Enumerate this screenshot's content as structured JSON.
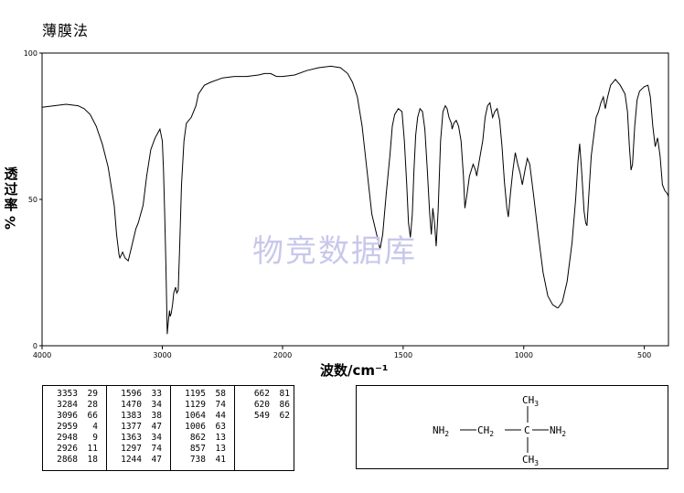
{
  "header": {
    "title": "薄膜法"
  },
  "chart_data": {
    "type": "line",
    "title": "",
    "xlabel": "波数/cm⁻¹",
    "ylabel_chars": [
      "透",
      "过",
      "率"
    ],
    "ylabel_unit": "%",
    "xlim": [
      4000,
      400
    ],
    "ylim": [
      0,
      100
    ],
    "x_ticks": [
      "4000",
      "3000",
      "2000",
      "1500",
      "1000",
      "500"
    ],
    "y_ticks": [
      "0",
      "50",
      "100"
    ],
    "series": [
      {
        "color": "#000000",
        "points": [
          [
            4000,
            81.5
          ],
          [
            3900,
            82
          ],
          [
            3800,
            82.5
          ],
          [
            3700,
            82
          ],
          [
            3650,
            81
          ],
          [
            3600,
            79
          ],
          [
            3550,
            75
          ],
          [
            3500,
            69
          ],
          [
            3450,
            61
          ],
          [
            3400,
            48
          ],
          [
            3380,
            38
          ],
          [
            3360,
            31
          ],
          [
            3353,
            30
          ],
          [
            3330,
            32
          ],
          [
            3310,
            30
          ],
          [
            3284,
            29
          ],
          [
            3260,
            33
          ],
          [
            3220,
            40
          ],
          [
            3200,
            42
          ],
          [
            3160,
            48
          ],
          [
            3130,
            58
          ],
          [
            3100,
            66
          ],
          [
            3096,
            67
          ],
          [
            3060,
            71
          ],
          [
            3020,
            74
          ],
          [
            3000,
            70
          ],
          [
            2990,
            60
          ],
          [
            2980,
            45
          ],
          [
            2970,
            28
          ],
          [
            2959,
            4
          ],
          [
            2955,
            6
          ],
          [
            2948,
            9
          ],
          [
            2940,
            12
          ],
          [
            2935,
            10
          ],
          [
            2926,
            11
          ],
          [
            2915,
            14
          ],
          [
            2905,
            18
          ],
          [
            2890,
            20
          ],
          [
            2880,
            18
          ],
          [
            2868,
            19
          ],
          [
            2855,
            35
          ],
          [
            2840,
            55
          ],
          [
            2820,
            70
          ],
          [
            2800,
            76
          ],
          [
            2760,
            78
          ],
          [
            2720,
            82
          ],
          [
            2700,
            86
          ],
          [
            2650,
            89
          ],
          [
            2600,
            90
          ],
          [
            2500,
            91.5
          ],
          [
            2400,
            92
          ],
          [
            2300,
            92
          ],
          [
            2200,
            92.5
          ],
          [
            2150,
            93
          ],
          [
            2100,
            93
          ],
          [
            2050,
            92
          ],
          [
            2000,
            92
          ],
          [
            1950,
            92.5
          ],
          [
            1900,
            94
          ],
          [
            1850,
            95
          ],
          [
            1800,
            95.5
          ],
          [
            1760,
            95
          ],
          [
            1730,
            93
          ],
          [
            1710,
            90
          ],
          [
            1690,
            85
          ],
          [
            1670,
            75
          ],
          [
            1650,
            60
          ],
          [
            1630,
            45
          ],
          [
            1610,
            38
          ],
          [
            1596,
            33
          ],
          [
            1585,
            38
          ],
          [
            1570,
            52
          ],
          [
            1555,
            65
          ],
          [
            1545,
            75
          ],
          [
            1535,
            79
          ],
          [
            1520,
            81
          ],
          [
            1505,
            80
          ],
          [
            1495,
            70
          ],
          [
            1485,
            55
          ],
          [
            1478,
            42
          ],
          [
            1470,
            37
          ],
          [
            1462,
            45
          ],
          [
            1455,
            60
          ],
          [
            1448,
            72
          ],
          [
            1440,
            78
          ],
          [
            1430,
            81
          ],
          [
            1420,
            80
          ],
          [
            1410,
            74
          ],
          [
            1400,
            60
          ],
          [
            1390,
            45
          ],
          [
            1383,
            38
          ],
          [
            1377,
            47
          ],
          [
            1370,
            42
          ],
          [
            1363,
            34
          ],
          [
            1355,
            46
          ],
          [
            1345,
            70
          ],
          [
            1335,
            80
          ],
          [
            1325,
            82
          ],
          [
            1318,
            81
          ],
          [
            1310,
            78
          ],
          [
            1300,
            76
          ],
          [
            1297,
            74
          ],
          [
            1290,
            76
          ],
          [
            1280,
            77
          ],
          [
            1270,
            75
          ],
          [
            1260,
            70
          ],
          [
            1250,
            58
          ],
          [
            1244,
            47
          ],
          [
            1235,
            52
          ],
          [
            1225,
            58
          ],
          [
            1210,
            62
          ],
          [
            1200,
            60
          ],
          [
            1195,
            58
          ],
          [
            1185,
            63
          ],
          [
            1170,
            70
          ],
          [
            1160,
            78
          ],
          [
            1150,
            82
          ],
          [
            1140,
            83
          ],
          [
            1129,
            78
          ],
          [
            1120,
            80
          ],
          [
            1110,
            81
          ],
          [
            1100,
            77
          ],
          [
            1090,
            68
          ],
          [
            1080,
            56
          ],
          [
            1070,
            47
          ],
          [
            1064,
            44
          ],
          [
            1055,
            52
          ],
          [
            1045,
            60
          ],
          [
            1035,
            66
          ],
          [
            1025,
            62
          ],
          [
            1015,
            59
          ],
          [
            1006,
            55
          ],
          [
            995,
            60
          ],
          [
            985,
            64
          ],
          [
            975,
            62
          ],
          [
            960,
            52
          ],
          [
            940,
            38
          ],
          [
            920,
            25
          ],
          [
            900,
            17
          ],
          [
            880,
            14
          ],
          [
            870,
            13.5
          ],
          [
            862,
            13
          ],
          [
            857,
            13
          ],
          [
            840,
            15
          ],
          [
            820,
            22
          ],
          [
            800,
            35
          ],
          [
            785,
            50
          ],
          [
            775,
            63
          ],
          [
            768,
            69
          ],
          [
            760,
            60
          ],
          [
            750,
            46
          ],
          [
            743,
            42
          ],
          [
            738,
            41
          ],
          [
            730,
            52
          ],
          [
            720,
            65
          ],
          [
            700,
            78
          ],
          [
            690,
            80
          ],
          [
            680,
            83
          ],
          [
            670,
            85
          ],
          [
            662,
            81
          ],
          [
            652,
            85
          ],
          [
            640,
            89
          ],
          [
            620,
            91
          ],
          [
            600,
            89
          ],
          [
            580,
            86
          ],
          [
            570,
            80
          ],
          [
            562,
            68
          ],
          [
            555,
            60
          ],
          [
            549,
            62
          ],
          [
            540,
            75
          ],
          [
            530,
            84
          ],
          [
            520,
            87
          ],
          [
            500,
            88.5
          ],
          [
            485,
            89
          ],
          [
            475,
            85
          ],
          [
            465,
            75
          ],
          [
            455,
            68
          ],
          [
            445,
            71
          ],
          [
            435,
            65
          ],
          [
            425,
            55
          ],
          [
            415,
            53
          ],
          [
            405,
            52
          ],
          [
            400,
            51
          ]
        ]
      }
    ],
    "peaks": [
      [
        [
          3353,
          29
        ],
        [
          3284,
          28
        ],
        [
          3096,
          66
        ],
        [
          2959,
          4
        ],
        [
          2948,
          9
        ],
        [
          2926,
          11
        ],
        [
          2868,
          18
        ]
      ],
      [
        [
          1596,
          33
        ],
        [
          1470,
          34
        ],
        [
          1383,
          38
        ],
        [
          1377,
          47
        ],
        [
          1363,
          34
        ],
        [
          1297,
          74
        ],
        [
          1244,
          47
        ]
      ],
      [
        [
          1195,
          58
        ],
        [
          1129,
          74
        ],
        [
          1064,
          44
        ],
        [
          1006,
          63
        ],
        [
          862,
          13
        ],
        [
          857,
          13
        ],
        [
          738,
          41
        ]
      ],
      [
        [
          662,
          81
        ],
        [
          620,
          86
        ],
        [
          549,
          62
        ]
      ]
    ],
    "watermark": "物竞数据库"
  },
  "structure": {
    "ch3_top": "CH3",
    "ch3_bottom": "CH3",
    "nh2_left": "NH2",
    "ch2": "CH2",
    "c": "C",
    "nh2_right": "NH2"
  }
}
